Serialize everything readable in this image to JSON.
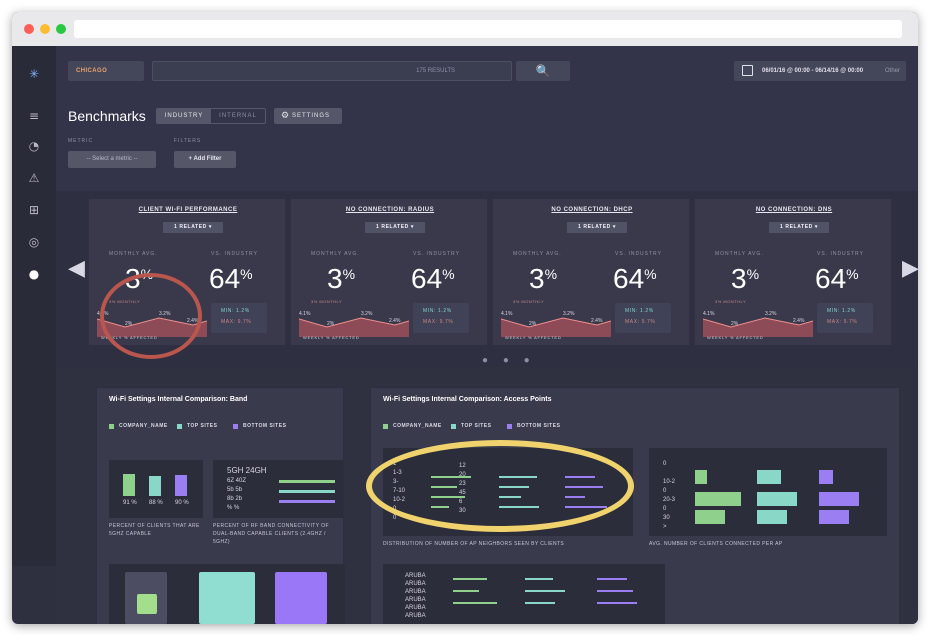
{
  "browser": {
    "url": ""
  },
  "header": {
    "location_label": "CHICAGO",
    "search_placeholder": "175 RESULTS",
    "search_button": "🔍",
    "date_range": "06/01/16 @ 00:00 - 06/14/16 @ 00:00",
    "date_other": "Other"
  },
  "page": {
    "title": "Benchmarks",
    "toggle_industry": "INDUSTRY",
    "toggle_internal": "INTERNAL",
    "settings_label": "SETTINGS",
    "metric_label": "METRIC",
    "filters_label": "FILTERS",
    "metric_select": "-- Select a metric --",
    "add_filter": "Add Filter"
  },
  "cards": [
    {
      "title": "CLIENT WI-FI PERFORMANCE",
      "related": "1 RELATED ▾",
      "monthly_label": "MONTHLY AVG.",
      "vs_label": "VS. INDUSTRY",
      "monthly_value": "3",
      "vs_value": "64",
      "monthly_note": "3% MONTHLY",
      "weekly": "WEEKLY % AFFECTED",
      "min": "MIN: 1.2%",
      "max": "MAX: 9.7%",
      "spark": [
        "4.1%",
        "2%",
        "3.2%",
        "2.4%"
      ]
    },
    {
      "title": "NO CONNECTION: RADIUS",
      "related": "1 RELATED ▾",
      "monthly_label": "MONTHLY AVG.",
      "vs_label": "VS. INDUSTRY",
      "monthly_value": "3",
      "vs_value": "64",
      "monthly_note": "3% MONTHLY",
      "weekly": "WEEKLY % AFFECTED",
      "min": "MIN: 1.2%",
      "max": "MAX: 9.7%",
      "spark": [
        "4.1%",
        "2%",
        "3.2%",
        "2.4%"
      ]
    },
    {
      "title": "NO CONNECTION: DHCP",
      "related": "1 RELATED ▾",
      "monthly_label": "MONTHLY AVG.",
      "vs_label": "VS. INDUSTRY",
      "monthly_value": "3",
      "vs_value": "64",
      "monthly_note": "3% MONTHLY",
      "weekly": "WEEKLY % AFFECTED",
      "min": "MIN: 1.2%",
      "max": "MAX: 9.7%",
      "spark": [
        "4.1%",
        "2%",
        "3.2%",
        "2.4%"
      ]
    },
    {
      "title": "NO CONNECTION: DNS",
      "related": "1 RELATED ▾",
      "monthly_label": "MONTHLY AVG.",
      "vs_label": "VS. INDUSTRY",
      "monthly_value": "3",
      "vs_value": "64",
      "monthly_note": "3% MONTHLY",
      "weekly": "WEEKLY % AFFECTED",
      "min": "MIN: 1.2%",
      "max": "MAX: 9.7%",
      "spark": [
        "4.1%",
        "2%",
        "3.2%",
        "2.4%"
      ]
    }
  ],
  "band_panel": {
    "title": "Wi-Fi Settings Internal Comparison: Band",
    "legend": [
      "COMPANY_NAME",
      "TOP SITES",
      "BOTTOM SITES"
    ],
    "bars": [
      {
        "label": "91\n%",
        "value": 91
      },
      {
        "label": "88\n%",
        "value": 88
      },
      {
        "label": "90\n%",
        "value": 90
      }
    ],
    "caption1": "PERCENT OF CLIENTS THAT ARE 5GHZ CAPABLE",
    "caption2": "PERCENT OF RF BAND CONNECTIVITY OF DUAL-BAND CAPABLE CLIENTS (2.4GHZ / 5GHZ)",
    "band_head": "5GH 24GH",
    "band_rows": [
      "6Z 40Z",
      "5b 5b",
      "8b 2b",
      "%  %"
    ]
  },
  "ap_panel": {
    "title": "Wi-Fi Settings Internal Comparison: Access Points",
    "legend": [
      "COMPANY_NAME",
      "TOP SITES",
      "BOTTOM SITES"
    ],
    "caption1": "DISTRIBUTION OF NUMBER OF AP NEIGHBORS SEEN BY CLIENTS",
    "caption2": "AVG. NUMBER OF CLIENTS CONNECTED PER AP",
    "vendors": [
      "ARUBA",
      "ARUBA",
      "ARUBA",
      "ARUBA",
      "ARUBA",
      "ARUBA"
    ]
  },
  "colors": {
    "company": "#8fd18c",
    "top": "#89d7c6",
    "bottom": "#9b7ef2"
  }
}
